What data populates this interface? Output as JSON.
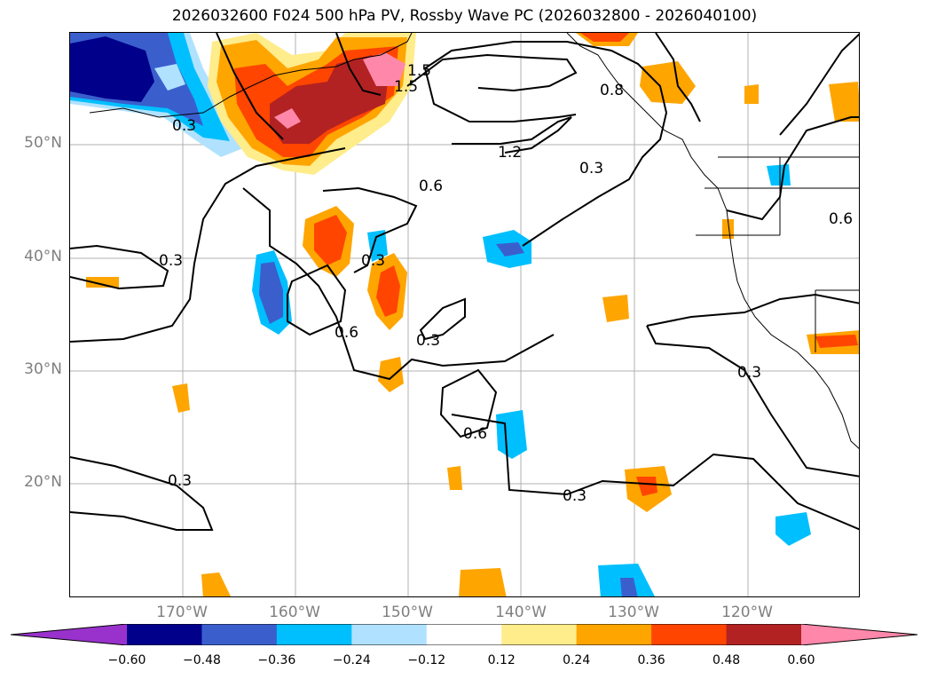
{
  "title": "2026032600 F024 500 hPa PV, Rossby Wave PC (2026032800 - 2026040100)",
  "lat_labels": [
    "50°N",
    "40°N",
    "30°N",
    "20°N"
  ],
  "lon_labels": [
    "170°W",
    "160°W",
    "150°W",
    "140°W",
    "130°W",
    "120°W"
  ],
  "contour_labels": [
    "1.5",
    "1.5",
    "1.2",
    "0.8",
    "0.6",
    "0.3",
    "0.3",
    "0.3",
    "0.6",
    "0.3",
    "0.6",
    "0.3",
    "0.3",
    "0.3",
    "0.3",
    "0.6"
  ],
  "colorbar": {
    "ticks": [
      "−0.60",
      "−0.48",
      "−0.36",
      "−0.24",
      "−0.12",
      "0.12",
      "0.24",
      "0.36",
      "0.48",
      "0.60"
    ],
    "colors": [
      "#9932cc",
      "#00008b",
      "#3a5fcd",
      "#00bfff",
      "#b0e2ff",
      "#ffffff",
      "#ffec8b",
      "#ffa500",
      "#ff4500",
      "#b22222",
      "#ff88aa"
    ]
  }
}
